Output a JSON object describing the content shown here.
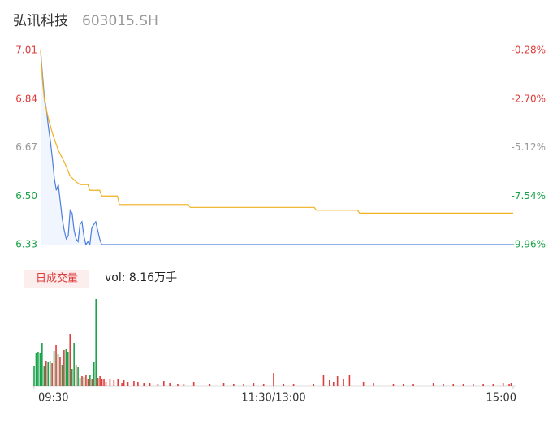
{
  "header": {
    "name": "弘讯科技",
    "code": "603015.SH"
  },
  "chart_data": [
    {
      "type": "line",
      "xlim": [
        0,
        240
      ],
      "ylim": [
        6.33,
        7.01
      ],
      "yticks": [
        7.01,
        6.84,
        6.67,
        {
          "value": 6.5,
          "label": "6.50"
        },
        6.33
      ],
      "ytick_colors": [
        "#e03c3c",
        "#e03c3c",
        "#999999",
        "#1aa34a",
        "#1aa34a"
      ],
      "y2lim": [
        -9.96,
        -0.28
      ],
      "y2ticks": [
        {
          "value": -0.28,
          "label": "-0.28%"
        },
        {
          "value": -2.7,
          "label": "-2.70%"
        },
        {
          "value": -5.12,
          "label": "-5.12%"
        },
        {
          "value": -7.54,
          "label": "-7.54%"
        },
        {
          "value": -9.96,
          "label": "-9.96%"
        }
      ],
      "y2tick_colors": [
        "#e03c3c",
        "#e03c3c",
        "#999999",
        "#1aa34a",
        "#1aa34a"
      ],
      "series": [
        {
          "color": "#4a7ee0",
          "x": [
            0,
            1,
            2,
            3,
            4,
            5,
            6,
            7,
            8,
            9,
            10,
            11,
            12,
            13,
            14,
            15,
            16,
            17,
            18,
            19,
            20,
            21,
            22,
            23,
            24,
            25,
            26,
            27,
            28,
            29,
            30,
            31,
            240
          ],
          "values": [
            7.01,
            6.92,
            6.84,
            6.8,
            6.74,
            6.69,
            6.63,
            6.56,
            6.52,
            6.54,
            6.48,
            6.42,
            6.38,
            6.35,
            6.36,
            6.45,
            6.44,
            6.38,
            6.35,
            6.34,
            6.4,
            6.41,
            6.36,
            6.33,
            6.34,
            6.33,
            6.39,
            6.4,
            6.41,
            6.38,
            6.35,
            6.33,
            6.33
          ]
        },
        {
          "color": "#f0b020",
          "x": [
            0,
            1,
            2,
            4,
            6,
            9,
            12,
            15,
            18,
            20,
            24,
            25,
            30,
            31,
            39,
            40,
            75,
            76,
            139,
            140,
            161,
            162,
            240
          ],
          "values": [
            7.01,
            6.9,
            6.83,
            6.77,
            6.72,
            6.66,
            6.62,
            6.57,
            6.55,
            6.54,
            6.54,
            6.52,
            6.52,
            6.5,
            6.5,
            6.47,
            6.47,
            6.46,
            6.46,
            6.45,
            6.45,
            6.44,
            6.44
          ]
        }
      ]
    },
    {
      "type": "bar",
      "label": "日成交量",
      "summary": "vol: 8.16万手",
      "xlim": [
        0,
        240
      ],
      "xticks": [
        {
          "value": 0,
          "label": "09:30"
        },
        {
          "value": 120,
          "label": "11:30/13:00"
        },
        {
          "value": 240,
          "label": "15:00"
        }
      ],
      "series": [
        {
          "color": "#1aa34a",
          "x": [
            0,
            1,
            2,
            3,
            4,
            5,
            7,
            8,
            10,
            12,
            14,
            16,
            17,
            19,
            20,
            22,
            23,
            25,
            28,
            30,
            31
          ],
          "values": [
            2400,
            4000,
            4200,
            4100,
            5300,
            2500,
            3000,
            3100,
            4300,
            3900,
            2600,
            4500,
            4200,
            2100,
            5300,
            2300,
            1000,
            1100,
            1400,
            3000,
            10700
          ]
        },
        {
          "color": "#e03c3c",
          "x": [
            6,
            9,
            11,
            13,
            15,
            18,
            21,
            24,
            26,
            27,
            29,
            32,
            33,
            34,
            35,
            36,
            38,
            40,
            42,
            44,
            45,
            47,
            50,
            52,
            55,
            58,
            62,
            65,
            68,
            72,
            75,
            80,
            88,
            95,
            100,
            105,
            110,
            115,
            120,
            125,
            130,
            140,
            145,
            148,
            150,
            152,
            155,
            158,
            165,
            170,
            180,
            185,
            190,
            200,
            205,
            210,
            215,
            220,
            225,
            230,
            235,
            238,
            239
          ],
          "values": [
            3100,
            2800,
            5000,
            3600,
            4400,
            6400,
            2600,
            1200,
            1300,
            800,
            900,
            1000,
            1200,
            800,
            900,
            500,
            800,
            700,
            900,
            400,
            700,
            500,
            600,
            500,
            400,
            400,
            300,
            600,
            400,
            300,
            200,
            500,
            300,
            400,
            300,
            300,
            400,
            200,
            1600,
            300,
            300,
            300,
            1300,
            700,
            500,
            1200,
            900,
            1400,
            500,
            400,
            200,
            300,
            200,
            400,
            200,
            300,
            200,
            300,
            200,
            300,
            400,
            300,
            400
          ]
        }
      ]
    }
  ]
}
